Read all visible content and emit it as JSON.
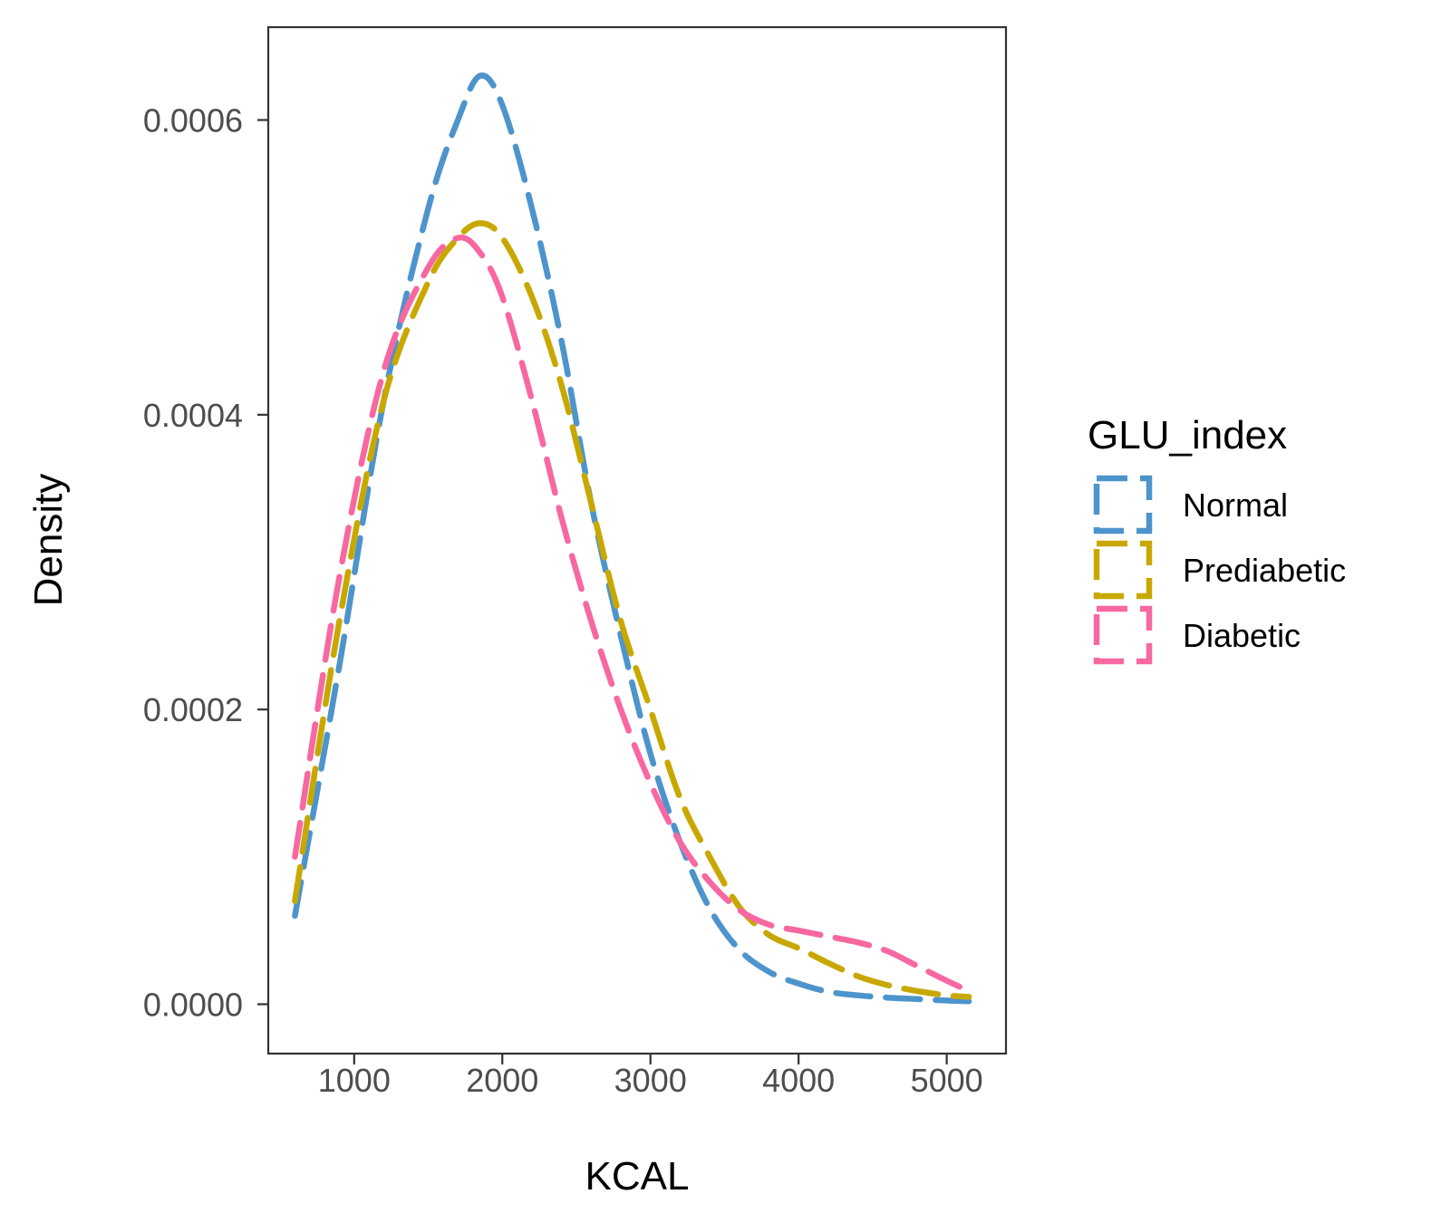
{
  "chart_data": {
    "type": "line",
    "xlabel": "KCAL",
    "ylabel": "Density",
    "xlim": [
      420,
      5400
    ],
    "ylim": [
      -3.35e-05,
      0.000663
    ],
    "x_ticks": [
      1000,
      2000,
      3000,
      4000,
      5000
    ],
    "y_ticks": [
      0.0,
      0.0002,
      0.0004,
      0.0006
    ],
    "x_tick_labels": [
      "1000",
      "2000",
      "3000",
      "4000",
      "5000"
    ],
    "y_tick_labels": [
      "0.0000",
      "0.0002",
      "0.0004",
      "0.0006"
    ],
    "grid": false,
    "line_style": "dashed",
    "legend": {
      "title": "GLU_index",
      "placement": "right",
      "entries": [
        "Normal",
        "Prediabetic",
        "Diabetic"
      ]
    },
    "series": [
      {
        "name": "Normal",
        "color": "#4d94cc",
        "x": [
          600,
          900,
          1200,
          1500,
          1700,
          1850,
          2000,
          2200,
          2400,
          2600,
          2800,
          3000,
          3200,
          3400,
          3600,
          3800,
          4000,
          4200,
          4400,
          4600,
          4800,
          5000,
          5150
        ],
        "y": [
          6e-05,
          0.00023,
          0.00041,
          0.00054,
          0.0006,
          0.00063,
          0.00061,
          0.00054,
          0.00045,
          0.00034,
          0.00025,
          0.00017,
          0.00011,
          6.5e-05,
          3.7e-05,
          2.2e-05,
          1.4e-05,
          8.5e-06,
          6e-06,
          4.5e-06,
          3.5e-06,
          2.5e-06,
          2e-06
        ]
      },
      {
        "name": "Prediabetic",
        "color": "#c8a800",
        "x": [
          600,
          900,
          1200,
          1500,
          1700,
          1850,
          2000,
          2200,
          2400,
          2600,
          2800,
          3000,
          3200,
          3400,
          3600,
          3800,
          4000,
          4200,
          4400,
          4600,
          4800,
          5000,
          5150
        ],
        "y": [
          7e-05,
          0.00026,
          0.00041,
          0.00049,
          0.00052,
          0.00053,
          0.00052,
          0.00048,
          0.00042,
          0.00034,
          0.00026,
          0.0002,
          0.00014,
          0.0001,
          6.6e-05,
          4.7e-05,
          3.8e-05,
          2.8e-05,
          1.9e-05,
          1.3e-05,
          9e-06,
          6e-06,
          5e-06
        ]
      },
      {
        "name": "Diabetic",
        "color": "#f768a1",
        "x": [
          600,
          900,
          1200,
          1500,
          1700,
          1850,
          2000,
          2200,
          2400,
          2600,
          2800,
          3000,
          3200,
          3400,
          3600,
          3800,
          4000,
          4200,
          4400,
          4600,
          4800,
          5000,
          5150
        ],
        "y": [
          0.0001,
          0.00029,
          0.00043,
          0.0005,
          0.00052,
          0.00051,
          0.00048,
          0.00041,
          0.00033,
          0.00026,
          0.0002,
          0.00015,
          0.00011,
          8.3e-05,
          6.4e-05,
          5.4e-05,
          5e-05,
          4.6e-05,
          4.2e-05,
          3.6e-05,
          2.6e-05,
          1.6e-05,
          9e-06
        ]
      }
    ]
  }
}
